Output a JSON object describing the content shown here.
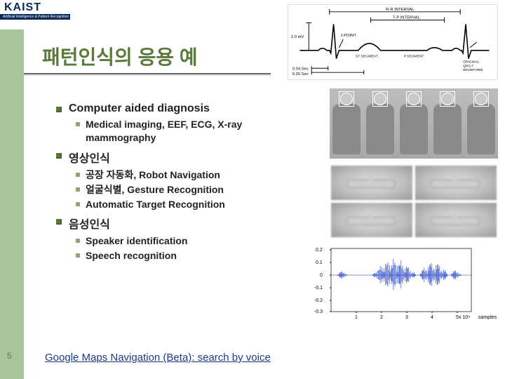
{
  "logo": {
    "text": "KAIST",
    "sub": "Artificial Intelligence & Pattern Recognition"
  },
  "title": "패턴인식의 응용 예",
  "page_number": "5",
  "footer_link": "Google Maps Navigation (Beta): search by voice",
  "sections": {
    "s1": {
      "heading": "Computer aided diagnosis",
      "items": {
        "i1": "Medical imaging, EEF, ECG, X-ray mammography"
      }
    },
    "s2": {
      "heading": "영상인식",
      "items": {
        "i1": "공장 자동화, Robot Navigation",
        "i2": "얼굴식별, Gesture Recognition",
        "i3": "Automatic Target Recognition"
      }
    },
    "s3": {
      "heading": "음성인식",
      "items": {
        "i1": "Speaker identification",
        "i2": "Speech recognition"
      }
    }
  },
  "waveform": {
    "type": "line",
    "xlim": [
      0,
      55000
    ],
    "ylim": [
      -0.3,
      0.2
    ],
    "yticks": [
      -0.3,
      -0.2,
      -0.1,
      0,
      0.1,
      0.2
    ],
    "xticks_labels": [
      "1",
      "2",
      "3",
      "4",
      "5"
    ],
    "xtick_unit": "x 10⁴",
    "xlabel": "samples",
    "line_color": "#1030c0",
    "axis_color": "#000000",
    "background_color": "#ffffff"
  },
  "ecg": {
    "type": "line",
    "labels": {
      "top": "R-R INTERVAL",
      "amp": "1.0 mV",
      "tseg": "T-P INTERVAL",
      "seg1": "P SEGMENT",
      "seg2": "ST SEGMENT",
      "b1": "0.04 Sec",
      "b2": "0.20 Sec",
      "jpoint": "J POINT",
      "orig": "ORIGINAL\nQRS-T\nWAVEFORM"
    },
    "line_color": "#000000",
    "axis_color": "#000000",
    "background_color": "#ffffff"
  },
  "colors": {
    "accent": "#5a7a3a",
    "stripe": "#a8c49a",
    "link": "#1a3a8a"
  }
}
